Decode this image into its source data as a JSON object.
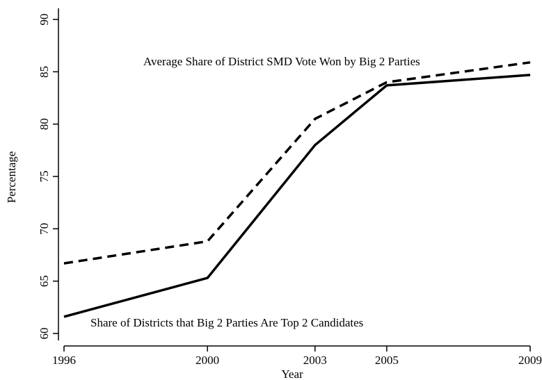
{
  "chart_data": {
    "type": "line",
    "title": "",
    "xlabel": "Year",
    "ylabel": "Percentage",
    "x": [
      1996,
      2000,
      2003,
      2005,
      2009
    ],
    "x_ticks": [
      "1996",
      "2000",
      "2003",
      "2005",
      "2009"
    ],
    "y_ticks": [
      "60",
      "65",
      "70",
      "75",
      "80",
      "85",
      "90"
    ],
    "ylim": [
      60,
      90
    ],
    "xlim": [
      1996,
      2009
    ],
    "grid": false,
    "series": [
      {
        "annotation": "Average Share of District SMD Vote Won by Big 2 Parties",
        "style": "dashed",
        "color": "#000000",
        "values": [
          66.7,
          68.8,
          80.5,
          84.0,
          85.9
        ]
      },
      {
        "annotation": "Share of Districts that Big 2 Parties Are Top 2 Candidates",
        "style": "solid",
        "color": "#000000",
        "values": [
          61.6,
          65.3,
          78.0,
          83.7,
          84.7
        ]
      }
    ]
  }
}
